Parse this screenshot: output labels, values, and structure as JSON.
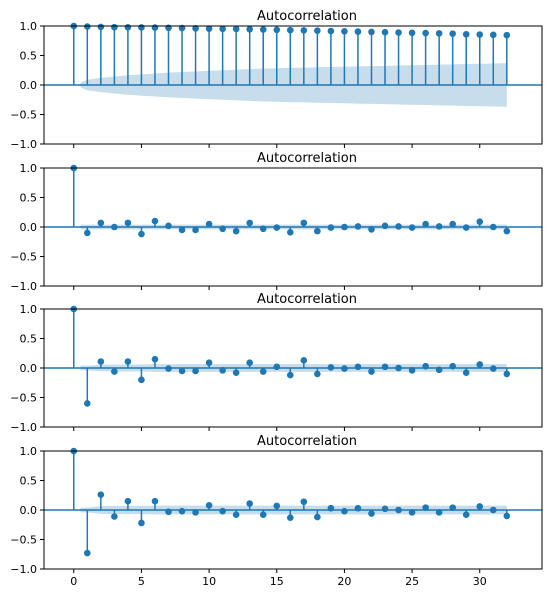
{
  "figure": {
    "colors": {
      "marker": "#1f77b4",
      "band": "#1f77b4",
      "zero_line": "#1f77b4",
      "axes": "#000000",
      "background": "#ffffff"
    }
  },
  "chart_data": [
    {
      "type": "stem",
      "title": "Autocorrelation",
      "xlabel": "",
      "ylabel": "",
      "xlim": [
        -2.2,
        34.6
      ],
      "ylim": [
        -1.0,
        1.0
      ],
      "yticks": [
        "−1.0",
        "−0.5",
        "0.0",
        "0.5",
        "1.0"
      ],
      "yticks_values": [
        -1.0,
        -0.5,
        0.0,
        0.5,
        1.0
      ],
      "xticks": [
        "0",
        "5",
        "10",
        "15",
        "20",
        "25",
        "30"
      ],
      "xticks_values": [
        0,
        5,
        10,
        15,
        20,
        25,
        30
      ],
      "show_xtick_labels": false,
      "lags": [
        0,
        1,
        2,
        3,
        4,
        5,
        6,
        7,
        8,
        9,
        10,
        11,
        12,
        13,
        14,
        15,
        16,
        17,
        18,
        19,
        20,
        21,
        22,
        23,
        24,
        25,
        26,
        27,
        28,
        29,
        30,
        31,
        32
      ],
      "values": [
        1.0,
        0.99,
        0.985,
        0.98,
        0.978,
        0.975,
        0.973,
        0.97,
        0.965,
        0.96,
        0.955,
        0.952,
        0.95,
        0.945,
        0.94,
        0.935,
        0.93,
        0.925,
        0.92,
        0.915,
        0.91,
        0.905,
        0.9,
        0.895,
        0.89,
        0.885,
        0.88,
        0.875,
        0.87,
        0.86,
        0.855,
        0.85,
        0.845
      ],
      "confidence_band": [
        0.04,
        0.09,
        0.12,
        0.145,
        0.165,
        0.18,
        0.195,
        0.21,
        0.22,
        0.23,
        0.24,
        0.25,
        0.26,
        0.27,
        0.28,
        0.285,
        0.29,
        0.295,
        0.3,
        0.305,
        0.31,
        0.315,
        0.32,
        0.325,
        0.33,
        0.335,
        0.34,
        0.345,
        0.35,
        0.355,
        0.36,
        0.365,
        0.37
      ]
    },
    {
      "type": "stem",
      "title": "Autocorrelation",
      "xlabel": "",
      "ylabel": "",
      "xlim": [
        -2.2,
        34.6
      ],
      "ylim": [
        -1.0,
        1.0
      ],
      "yticks": [
        "−1.0",
        "−0.5",
        "0.0",
        "0.5",
        "1.0"
      ],
      "yticks_values": [
        -1.0,
        -0.5,
        0.0,
        0.5,
        1.0
      ],
      "xticks": [
        "0",
        "5",
        "10",
        "15",
        "20",
        "25",
        "30"
      ],
      "xticks_values": [
        0,
        5,
        10,
        15,
        20,
        25,
        30
      ],
      "show_xtick_labels": false,
      "lags": [
        0,
        1,
        2,
        3,
        4,
        5,
        6,
        7,
        8,
        9,
        10,
        11,
        12,
        13,
        14,
        15,
        16,
        17,
        18,
        19,
        20,
        21,
        22,
        23,
        24,
        25,
        26,
        27,
        28,
        29,
        30,
        31,
        32
      ],
      "values": [
        1.0,
        -0.1,
        0.07,
        0.0,
        0.07,
        -0.12,
        0.1,
        0.02,
        -0.05,
        -0.05,
        0.05,
        -0.03,
        -0.07,
        0.07,
        -0.03,
        -0.01,
        -0.09,
        0.07,
        -0.07,
        -0.01,
        0.0,
        0.01,
        -0.04,
        0.02,
        0.01,
        -0.01,
        0.05,
        0.01,
        0.05,
        -0.01,
        0.09,
        0.0,
        -0.07
      ],
      "confidence_band": [
        0.04,
        0.04,
        0.04,
        0.04,
        0.04,
        0.04,
        0.04,
        0.04,
        0.04,
        0.04,
        0.04,
        0.04,
        0.04,
        0.04,
        0.04,
        0.04,
        0.04,
        0.04,
        0.04,
        0.04,
        0.04,
        0.04,
        0.04,
        0.04,
        0.04,
        0.04,
        0.04,
        0.04,
        0.04,
        0.04,
        0.04,
        0.04,
        0.04
      ]
    },
    {
      "type": "stem",
      "title": "Autocorrelation",
      "xlabel": "",
      "ylabel": "",
      "xlim": [
        -2.2,
        34.6
      ],
      "ylim": [
        -1.0,
        1.0
      ],
      "yticks": [
        "−1.0",
        "−0.5",
        "0.0",
        "0.5",
        "1.0"
      ],
      "yticks_values": [
        -1.0,
        -0.5,
        0.0,
        0.5,
        1.0
      ],
      "xticks": [
        "0",
        "5",
        "10",
        "15",
        "20",
        "25",
        "30"
      ],
      "xticks_values": [
        0,
        5,
        10,
        15,
        20,
        25,
        30
      ],
      "show_xtick_labels": false,
      "lags": [
        0,
        1,
        2,
        3,
        4,
        5,
        6,
        7,
        8,
        9,
        10,
        11,
        12,
        13,
        14,
        15,
        16,
        17,
        18,
        19,
        20,
        21,
        22,
        23,
        24,
        25,
        26,
        27,
        28,
        29,
        30,
        31,
        32
      ],
      "values": [
        1.0,
        -0.6,
        0.11,
        -0.06,
        0.11,
        -0.2,
        0.15,
        -0.01,
        -0.05,
        -0.05,
        0.09,
        -0.04,
        -0.08,
        0.09,
        -0.06,
        0.02,
        -0.12,
        0.13,
        -0.1,
        0.01,
        -0.01,
        0.02,
        -0.06,
        0.02,
        0.0,
        -0.04,
        0.03,
        -0.03,
        0.03,
        -0.08,
        0.06,
        -0.01,
        -0.1
      ],
      "confidence_band": [
        0.04,
        0.04,
        0.055,
        0.06,
        0.06,
        0.06,
        0.065,
        0.065,
        0.065,
        0.065,
        0.065,
        0.065,
        0.065,
        0.065,
        0.065,
        0.065,
        0.065,
        0.065,
        0.065,
        0.065,
        0.065,
        0.065,
        0.065,
        0.065,
        0.065,
        0.065,
        0.065,
        0.065,
        0.065,
        0.065,
        0.065,
        0.065,
        0.065
      ]
    },
    {
      "type": "stem",
      "title": "Autocorrelation",
      "xlabel": "",
      "ylabel": "",
      "xlim": [
        -2.2,
        34.6
      ],
      "ylim": [
        -1.0,
        1.0
      ],
      "yticks": [
        "−1.0",
        "−0.5",
        "0.0",
        "0.5",
        "1.0"
      ],
      "yticks_values": [
        -1.0,
        -0.5,
        0.0,
        0.5,
        1.0
      ],
      "xticks": [
        "0",
        "5",
        "10",
        "15",
        "20",
        "25",
        "30"
      ],
      "xticks_values": [
        0,
        5,
        10,
        15,
        20,
        25,
        30
      ],
      "show_xtick_labels": true,
      "lags": [
        0,
        1,
        2,
        3,
        4,
        5,
        6,
        7,
        8,
        9,
        10,
        11,
        12,
        13,
        14,
        15,
        16,
        17,
        18,
        19,
        20,
        21,
        22,
        23,
        24,
        25,
        26,
        27,
        28,
        29,
        30,
        31,
        32
      ],
      "values": [
        1.0,
        -0.73,
        0.26,
        -0.11,
        0.15,
        -0.22,
        0.15,
        -0.03,
        -0.02,
        -0.04,
        0.08,
        -0.02,
        -0.08,
        0.11,
        -0.08,
        0.07,
        -0.13,
        0.14,
        -0.12,
        0.03,
        -0.02,
        0.03,
        -0.06,
        0.02,
        0.0,
        -0.04,
        0.04,
        -0.04,
        0.04,
        -0.08,
        0.06,
        0.0,
        -0.1
      ],
      "confidence_band": [
        0.04,
        0.04,
        0.065,
        0.07,
        0.07,
        0.07,
        0.075,
        0.075,
        0.075,
        0.075,
        0.075,
        0.075,
        0.075,
        0.075,
        0.075,
        0.075,
        0.075,
        0.075,
        0.075,
        0.075,
        0.075,
        0.075,
        0.075,
        0.075,
        0.075,
        0.075,
        0.075,
        0.075,
        0.075,
        0.075,
        0.075,
        0.075,
        0.075
      ]
    }
  ]
}
